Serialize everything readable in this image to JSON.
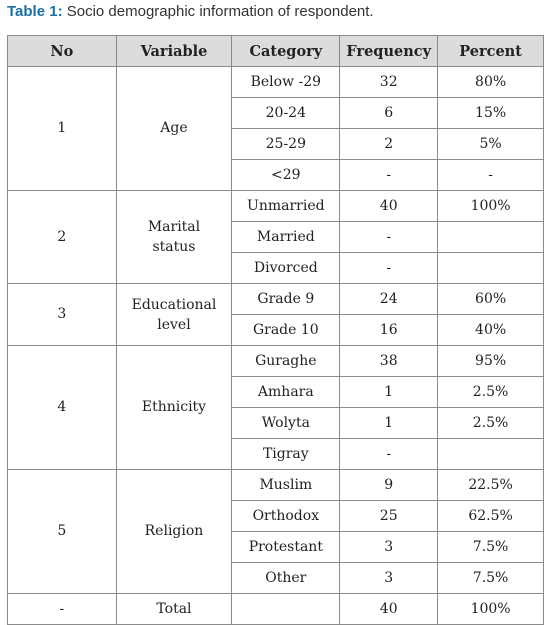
{
  "caption": {
    "label": "Table 1:",
    "text": " Socio demographic information of respondent."
  },
  "table": {
    "headers": [
      "No",
      "Variable",
      "Category",
      "Frequency",
      "Percent"
    ],
    "groups": [
      {
        "no": "1",
        "variable": "Age",
        "rows": [
          {
            "category": "Below -29",
            "frequency": "32",
            "percent": "80%"
          },
          {
            "category": "20-24",
            "frequency": "6",
            "percent": "15%"
          },
          {
            "category": "25-29",
            "frequency": "2",
            "percent": "5%"
          },
          {
            "category": "<29",
            "frequency": "-",
            "percent": "-"
          }
        ]
      },
      {
        "no": "2",
        "variable": "Marital\nstatus",
        "rows": [
          {
            "category": "Unmarried",
            "frequency": "40",
            "percent": "100%"
          },
          {
            "category": "Married",
            "frequency": "-",
            "percent": ""
          },
          {
            "category": "Divorced",
            "frequency": "-",
            "percent": ""
          }
        ]
      },
      {
        "no": "3",
        "variable": "Educational\nlevel",
        "rows": [
          {
            "category": "Grade 9",
            "frequency": "24",
            "percent": "60%"
          },
          {
            "category": "Grade 10",
            "frequency": "16",
            "percent": "40%"
          }
        ]
      },
      {
        "no": "4",
        "variable": "Ethnicity",
        "rows": [
          {
            "category": "Guraghe",
            "frequency": "38",
            "percent": "95%"
          },
          {
            "category": "Amhara",
            "frequency": "1",
            "percent": "2.5%"
          },
          {
            "category": "Wolyta",
            "frequency": "1",
            "percent": "2.5%"
          },
          {
            "category": "Tigray",
            "frequency": "-",
            "percent": ""
          }
        ]
      },
      {
        "no": "5",
        "variable": "Religion",
        "rows": [
          {
            "category": "Muslim",
            "frequency": "9",
            "percent": "22.5%"
          },
          {
            "category": "Orthodox",
            "frequency": "25",
            "percent": "62.5%"
          },
          {
            "category": "Protestant",
            "frequency": "3",
            "percent": "7.5%"
          },
          {
            "category": "Other",
            "frequency": "3",
            "percent": "7.5%"
          }
        ]
      }
    ],
    "total": {
      "no": "-",
      "variable": "Total",
      "category": "",
      "frequency": "40",
      "percent": "100%"
    }
  }
}
